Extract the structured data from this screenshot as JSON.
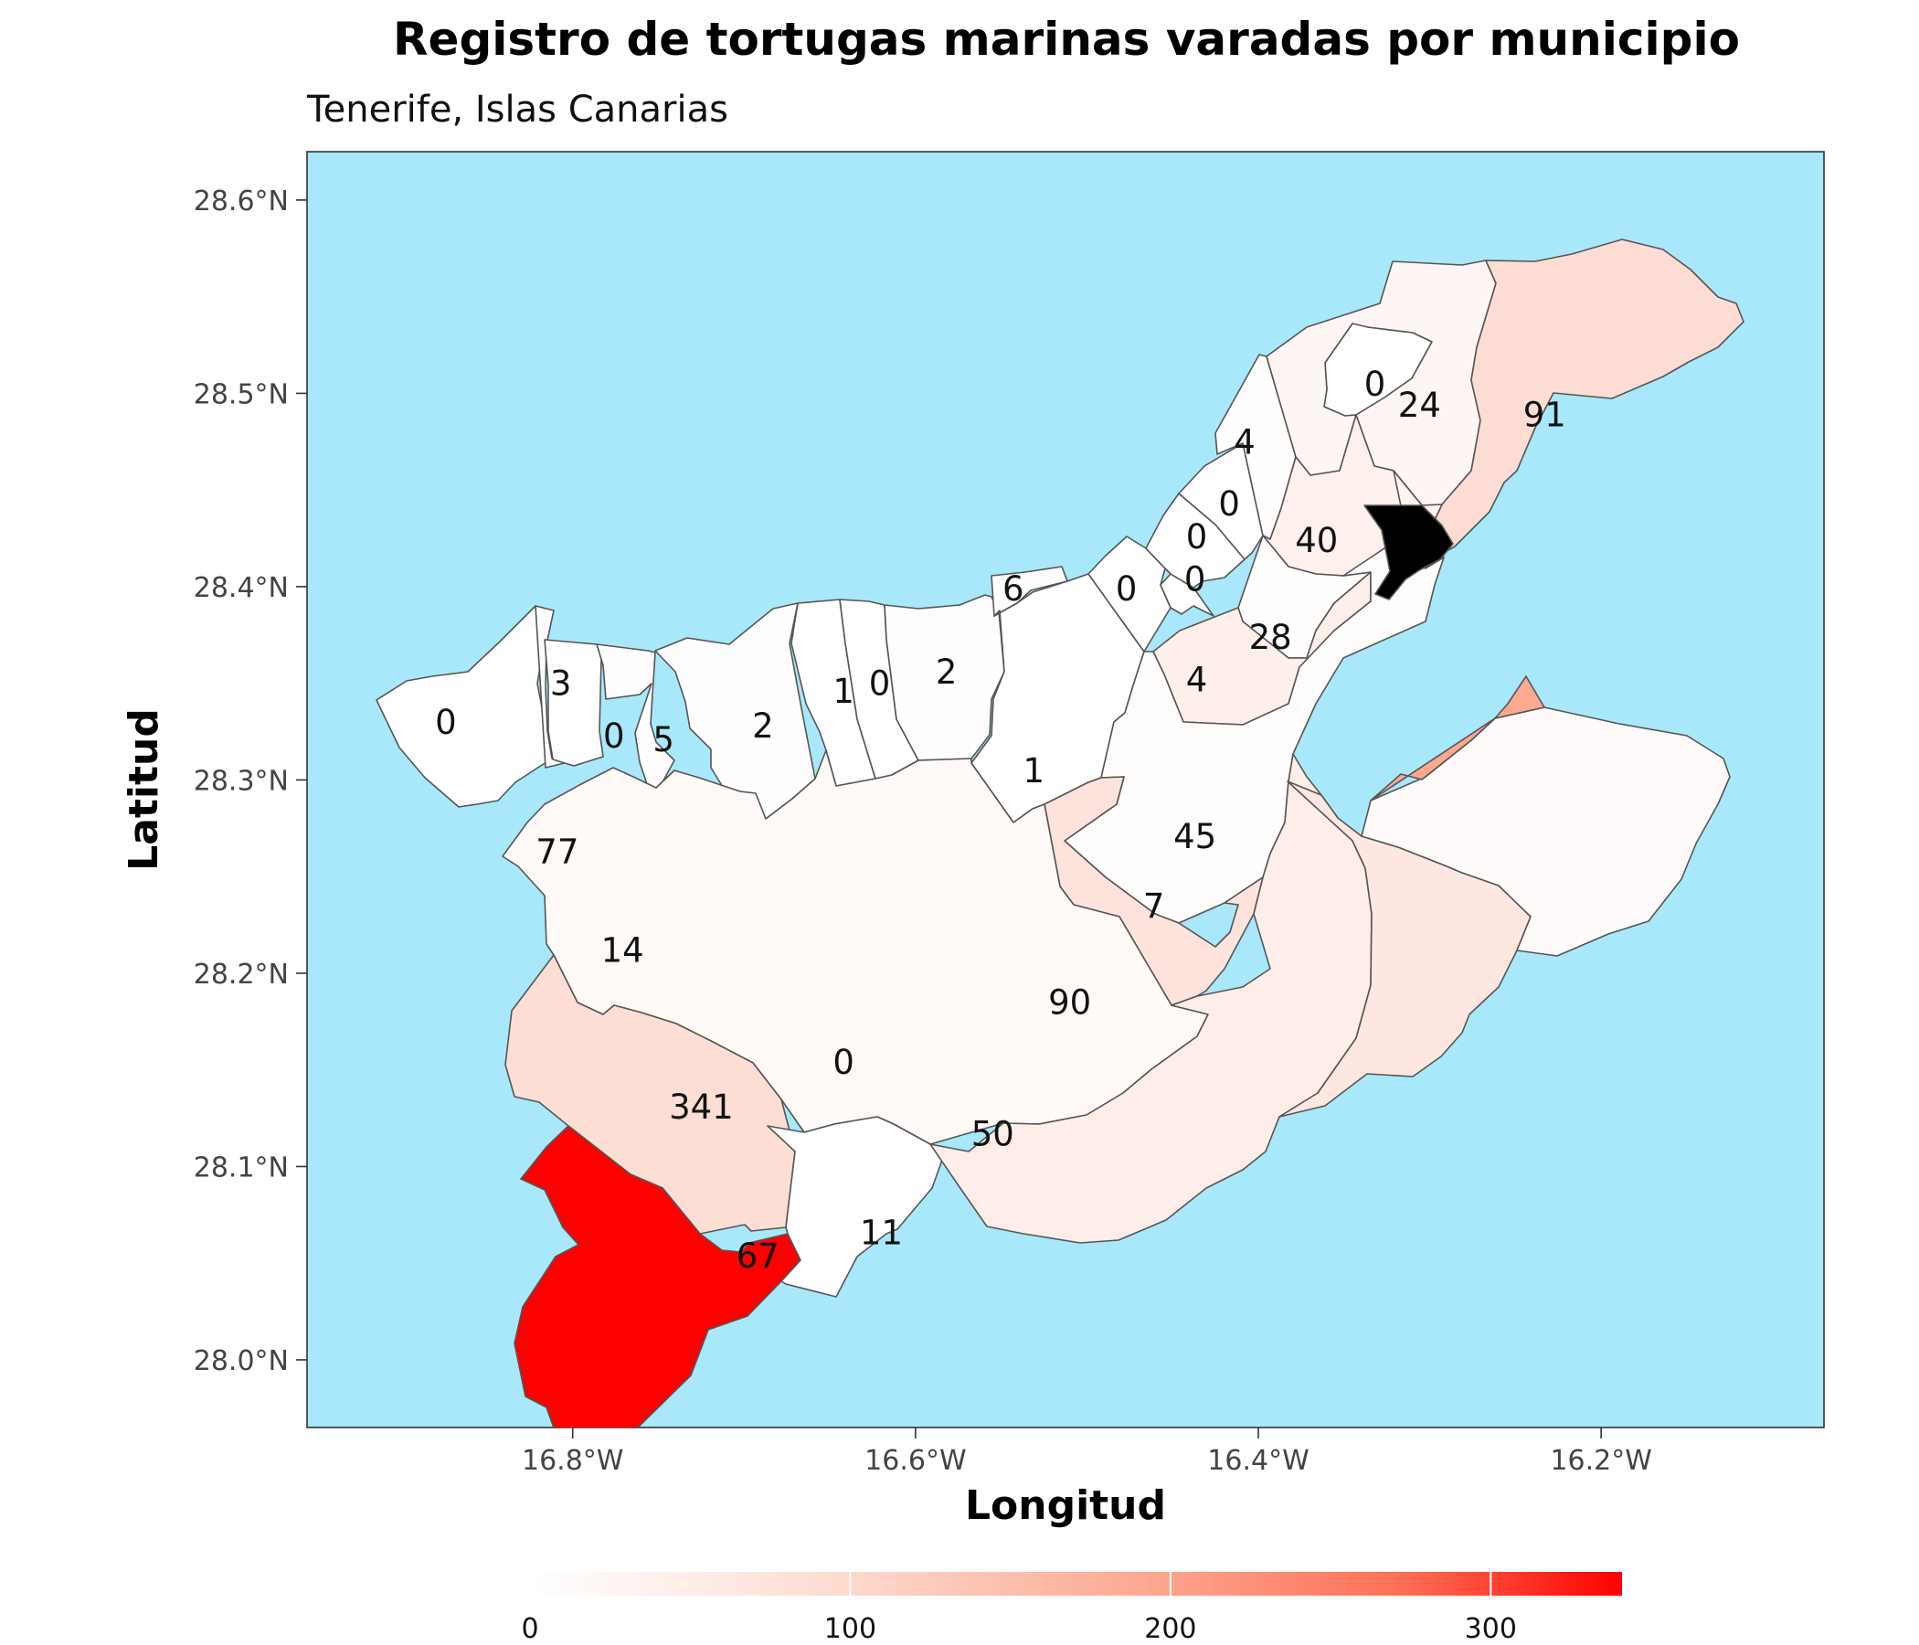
{
  "chart_data": {
    "type": "choropleth",
    "title": "Registro de tortugas marinas varadas por municipio",
    "subtitle": "Tenerife, Islas Canarias",
    "xlabel": "Longitud",
    "ylabel": "Latitud",
    "x_ticks": [
      "16.8°W",
      "16.6°W",
      "16.4°W",
      "16.2°W"
    ],
    "y_ticks": [
      "28.0°N",
      "28.1°N",
      "28.2°N",
      "28.3°N",
      "28.4°N",
      "28.5°N",
      "28.6°N"
    ],
    "x_tick_values": [
      -16.8,
      -16.6,
      -16.4,
      -16.2
    ],
    "y_tick_values": [
      28.0,
      28.1,
      28.2,
      28.3,
      28.4,
      28.5,
      28.6
    ],
    "xlim": [
      -16.955,
      -16.07
    ],
    "ylim": [
      27.965,
      28.625
    ],
    "legend": {
      "position": "bottom",
      "ticks": [
        "0",
        "100",
        "200",
        "300"
      ],
      "tick_values": [
        0,
        100,
        200,
        300
      ],
      "range": [
        0,
        341
      ]
    },
    "colors": {
      "sea": "#a8e8fa",
      "low": "#ffffff",
      "high": "#ff0000",
      "border": "#555555"
    },
    "regions": [
      {
        "value": 0,
        "label": "0",
        "lon": -16.874,
        "lat": 28.33
      },
      {
        "value": 3,
        "label": "3",
        "lon": -16.807,
        "lat": 28.35
      },
      {
        "value": 0,
        "label": "0",
        "lon": -16.776,
        "lat": 28.323
      },
      {
        "value": 5,
        "label": "5",
        "lon": -16.747,
        "lat": 28.321
      },
      {
        "value": 2,
        "label": "2",
        "lon": -16.689,
        "lat": 28.328
      },
      {
        "value": 1,
        "label": "1",
        "lon": -16.642,
        "lat": 28.346
      },
      {
        "value": 0,
        "label": "0",
        "lon": -16.621,
        "lat": 28.35
      },
      {
        "value": 2,
        "label": "2",
        "lon": -16.582,
        "lat": 28.356
      },
      {
        "value": 6,
        "label": "6",
        "lon": -16.543,
        "lat": 28.399
      },
      {
        "value": 1,
        "label": "1",
        "lon": -16.531,
        "lat": 28.305
      },
      {
        "value": 0,
        "label": "0",
        "lon": -16.477,
        "lat": 28.399
      },
      {
        "value": 0,
        "label": "0",
        "lon": -16.437,
        "lat": 28.404
      },
      {
        "value": 0,
        "label": "0",
        "lon": -16.436,
        "lat": 28.426
      },
      {
        "value": 0,
        "label": "0",
        "lon": -16.417,
        "lat": 28.443
      },
      {
        "value": 4,
        "label": "4",
        "lon": -16.408,
        "lat": 28.475
      },
      {
        "value": 0,
        "label": "0",
        "lon": -16.332,
        "lat": 28.505
      },
      {
        "value": 24,
        "label": "24",
        "lon": -16.306,
        "lat": 28.494
      },
      {
        "value": 91,
        "label": "91",
        "lon": -16.233,
        "lat": 28.489
      },
      {
        "value": 40,
        "label": "40",
        "lon": -16.366,
        "lat": 28.424
      },
      {
        "value": 28,
        "label": "28",
        "lon": -16.393,
        "lat": 28.374
      },
      {
        "value": 4,
        "label": "4",
        "lon": -16.436,
        "lat": 28.352
      },
      {
        "value": 45,
        "label": "45",
        "lon": -16.437,
        "lat": 28.271
      },
      {
        "value": 7,
        "label": "7",
        "lon": -16.461,
        "lat": 28.235
      },
      {
        "value": 77,
        "label": "77",
        "lon": -16.809,
        "lat": 28.263
      },
      {
        "value": 14,
        "label": "14",
        "lon": -16.771,
        "lat": 28.212
      },
      {
        "value": 90,
        "label": "90",
        "lon": -16.51,
        "lat": 28.185
      },
      {
        "value": 341,
        "label": "341",
        "lon": -16.725,
        "lat": 28.131
      },
      {
        "value": 0,
        "label": "0",
        "lon": -16.642,
        "lat": 28.154
      },
      {
        "value": 50,
        "label": "50",
        "lon": -16.555,
        "lat": 28.117
      },
      {
        "value": 67,
        "label": "67",
        "lon": -16.692,
        "lat": 28.054
      },
      {
        "value": 11,
        "label": "11",
        "lon": -16.62,
        "lat": 28.066
      },
      {
        "value": null,
        "label": "",
        "lon": -16.3,
        "lat": 28.425
      }
    ]
  }
}
